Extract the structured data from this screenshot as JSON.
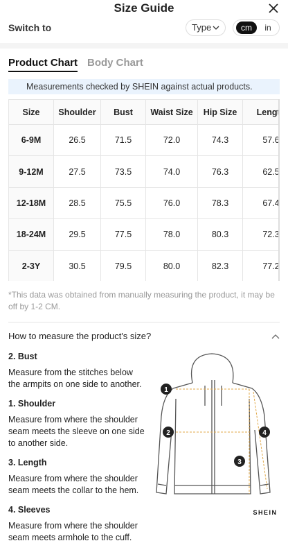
{
  "header": {
    "title": "Size Guide",
    "switch_label": "Switch to",
    "type_button": "Type",
    "units": [
      "cm",
      "in"
    ]
  },
  "tabs": [
    "Product Chart",
    "Body Chart"
  ],
  "notice": "Measurements checked by SHEIN against actual products.",
  "table": {
    "headers": [
      "Size",
      "Shoulder",
      "Bust",
      "Waist Size",
      "Hip Size",
      "Length"
    ],
    "rows": [
      [
        "6-9M",
        "26.5",
        "71.5",
        "72.0",
        "74.3",
        "57.6"
      ],
      [
        "9-12M",
        "27.5",
        "73.5",
        "74.0",
        "76.3",
        "62.5"
      ],
      [
        "12-18M",
        "28.5",
        "75.5",
        "76.0",
        "78.3",
        "67.4"
      ],
      [
        "18-24M",
        "29.5",
        "77.5",
        "78.0",
        "80.3",
        "72.3"
      ],
      [
        "2-3Y",
        "30.5",
        "79.5",
        "80.0",
        "82.3",
        "77.2"
      ]
    ]
  },
  "footnote": "*This data was obtained from manually measuring the product, it may be off by 1-2 CM.",
  "how_to": {
    "title": "How to measure the product's size?",
    "items": [
      {
        "title": "2. Bust",
        "text": "Measure from the stitches below the armpits on one side to another."
      },
      {
        "title": "1. Shoulder",
        "text": "Measure from where the shoulder seam meets the sleeve on one side to another side."
      },
      {
        "title": "3. Length",
        "text": "Measure from where the shoulder seam meets the collar to the hem."
      },
      {
        "title": "4. Sleeves",
        "text": "Measure from where the shoulder seam meets armhole to the cuff."
      }
    ],
    "figure_labels": [
      "1",
      "2",
      "3",
      "4"
    ],
    "brand": "SHEIN"
  }
}
